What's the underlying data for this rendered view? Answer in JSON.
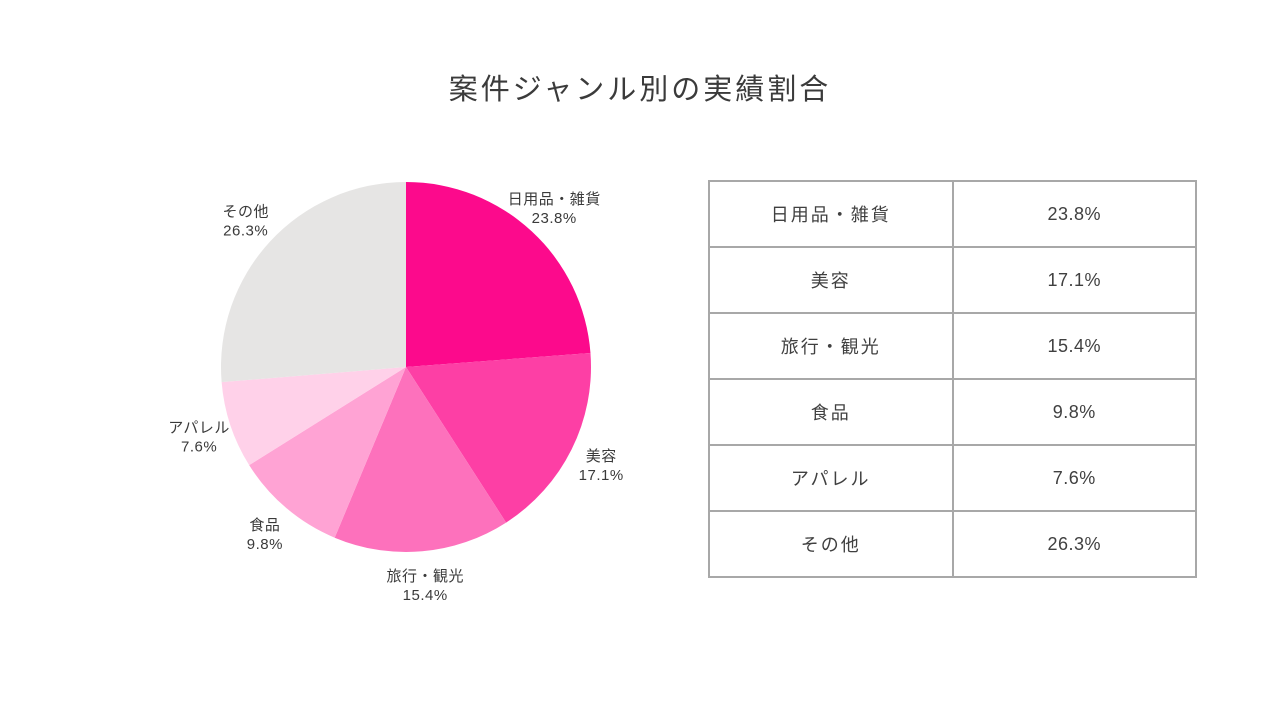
{
  "title": "案件ジャンル別の実績割合",
  "chart_data": {
    "type": "pie",
    "title": "案件ジャンル別の実績割合",
    "categories": [
      "日用品・雑貨",
      "美容",
      "旅行・観光",
      "食品",
      "アパレル",
      "その他"
    ],
    "values": [
      23.8,
      17.1,
      15.4,
      9.8,
      7.6,
      26.3
    ],
    "unit": "%",
    "colors": [
      "#fc0a8c",
      "#fd3fa5",
      "#fd71bc",
      "#ffa3d4",
      "#ffd1e9",
      "#e6e5e4"
    ],
    "start_angle": "top",
    "direction": "clockwise",
    "legend_position": "none",
    "label_style": "name and percent outside each slice"
  },
  "table": {
    "rows": [
      {
        "label": "日用品・雑貨",
        "value": "23.8%"
      },
      {
        "label": "美容",
        "value": "17.1%"
      },
      {
        "label": "旅行・観光",
        "value": "15.4%"
      },
      {
        "label": "食品",
        "value": "9.8%"
      },
      {
        "label": "アパレル",
        "value": "7.6%"
      },
      {
        "label": "その他",
        "value": "26.3%"
      }
    ],
    "border_color": "#a8a8a8",
    "text_color": "#404040"
  },
  "colors": {
    "background": "#ffffff",
    "title_text": "#3b3b3b",
    "pie_label_text": "#3a3a3a"
  }
}
